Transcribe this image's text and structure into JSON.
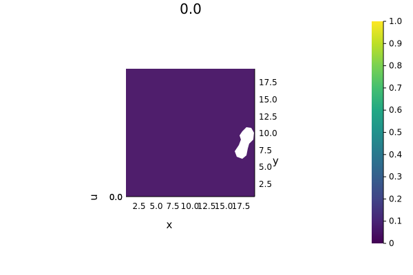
{
  "chart_data": {
    "type": "heatmap",
    "title": "0.0",
    "xlabel": "x",
    "ylabel": "y",
    "zlabel": "u",
    "xlim": [
      0.5,
      19.5
    ],
    "ylim": [
      0.5,
      19.5
    ],
    "x_ticks": [
      "2.5",
      "5.0",
      "7.5",
      "10.0",
      "12.5",
      "15.0",
      "17.5"
    ],
    "y_ticks": [
      "2.5",
      "5.0",
      "7.5",
      "10.0",
      "12.5",
      "15.0",
      "17.5"
    ],
    "z_ticks_overlapped": [
      "0.0",
      "0.0",
      "0.0",
      "0.0"
    ],
    "field_value": 0.13,
    "colorbar": {
      "colormap": "viridis",
      "range": [
        0,
        1
      ],
      "ticks": [
        "0",
        "0.1",
        "0.2",
        "0.3",
        "0.4",
        "0.5",
        "0.6",
        "0.7",
        "0.8",
        "0.9",
        "1.0"
      ]
    },
    "missing_region_note": "white gap near x≈17–19, y≈6.5–10.5"
  },
  "colors": {
    "field": "#4f1e6c",
    "background": "#ffffff"
  }
}
